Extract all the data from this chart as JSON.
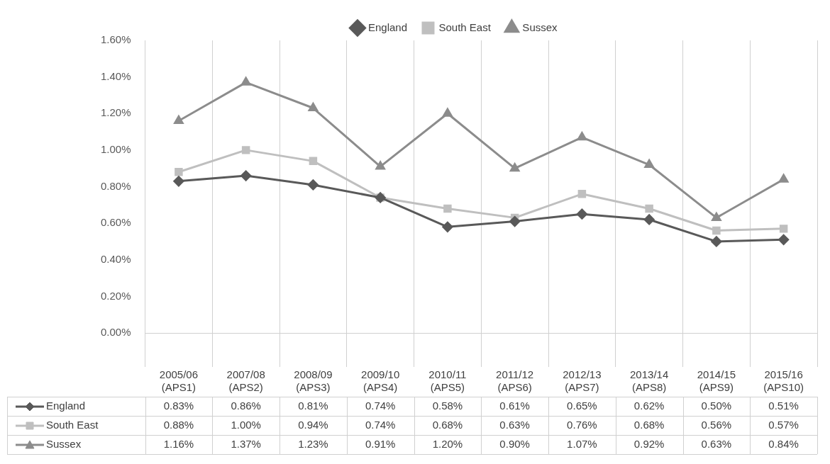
{
  "chart_data": {
    "type": "line",
    "categories": [
      "2005/06\n(APS1)",
      "2007/08\n(APS2)",
      "2008/09\n(APS3)",
      "2009/10\n(APS4)",
      "2010/11\n(APS5)",
      "2011/12\n(APS6)",
      "2012/13\n(APS7)",
      "2013/14\n(APS8)",
      "2014/15\n(APS9)",
      "2015/16\n(APS10)"
    ],
    "series": [
      {
        "name": "England",
        "color": "#595959",
        "marker": "diamond",
        "values": [
          0.83,
          0.86,
          0.81,
          0.74,
          0.58,
          0.61,
          0.65,
          0.62,
          0.5,
          0.51
        ],
        "value_labels": [
          "0.83%",
          "0.86%",
          "0.81%",
          "0.74%",
          "0.58%",
          "0.61%",
          "0.65%",
          "0.62%",
          "0.50%",
          "0.51%"
        ]
      },
      {
        "name": "South East",
        "color": "#bfbfbf",
        "marker": "square",
        "values": [
          0.88,
          1.0,
          0.94,
          0.74,
          0.68,
          0.63,
          0.76,
          0.68,
          0.56,
          0.57
        ],
        "value_labels": [
          "0.88%",
          "1.00%",
          "0.94%",
          "0.74%",
          "0.68%",
          "0.63%",
          "0.76%",
          "0.68%",
          "0.56%",
          "0.57%"
        ]
      },
      {
        "name": "Sussex",
        "color": "#8c8c8c",
        "marker": "triangle",
        "values": [
          1.16,
          1.37,
          1.23,
          0.91,
          1.2,
          0.9,
          1.07,
          0.92,
          0.63,
          0.84
        ],
        "value_labels": [
          "1.16%",
          "1.37%",
          "1.23%",
          "0.91%",
          "1.20%",
          "0.90%",
          "1.07%",
          "0.92%",
          "0.63%",
          "0.84%"
        ]
      }
    ],
    "ylim": [
      0,
      1.6
    ],
    "yticks": [
      {
        "value": 0,
        "label": "0.00%"
      },
      {
        "value": 0.2,
        "label": "0.20%"
      },
      {
        "value": 0.4,
        "label": "0.40%"
      },
      {
        "value": 0.6,
        "label": "0.60%"
      },
      {
        "value": 0.8,
        "label": "0.80%"
      },
      {
        "value": 1.0,
        "label": "1.00%"
      },
      {
        "value": 1.2,
        "label": "1.20%"
      },
      {
        "value": 1.4,
        "label": "1.40%"
      },
      {
        "value": 1.6,
        "label": "1.60%"
      }
    ],
    "grid": "x",
    "legend": "top",
    "line_style": "solid"
  }
}
